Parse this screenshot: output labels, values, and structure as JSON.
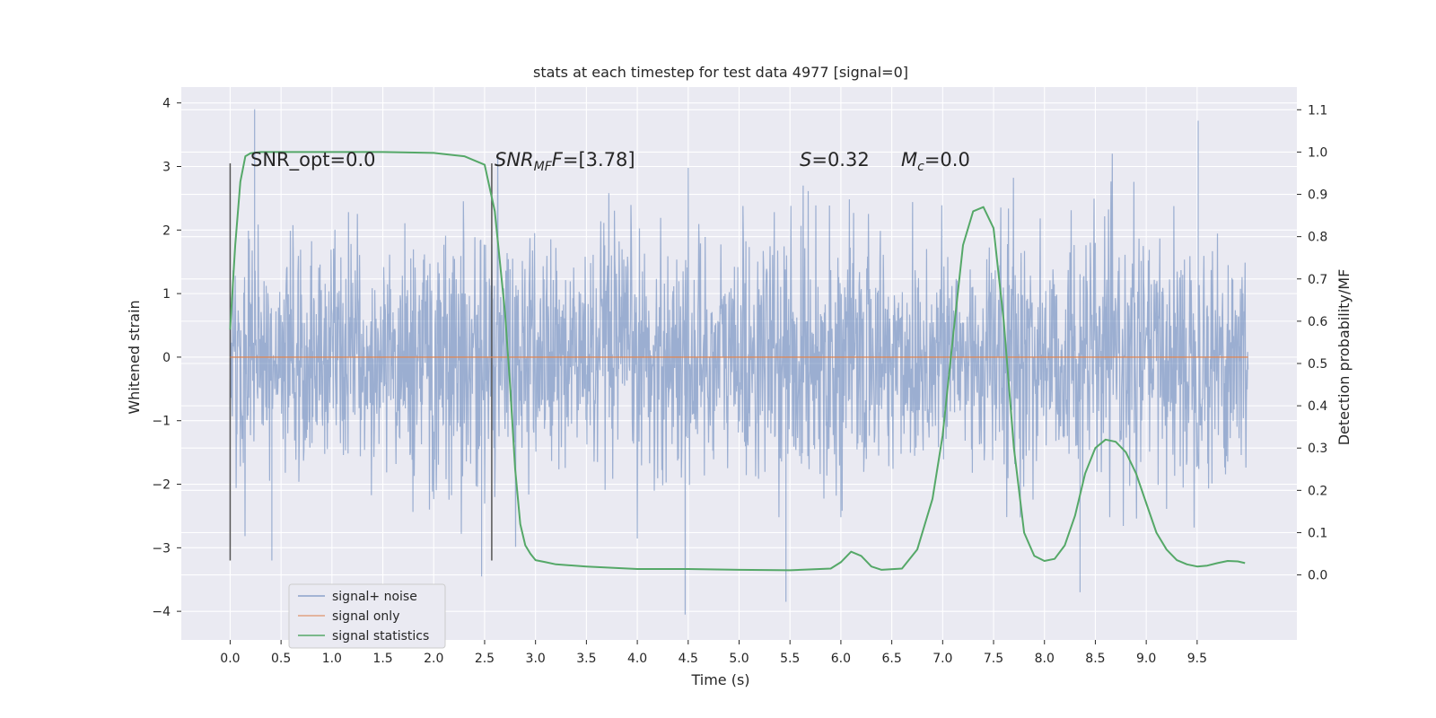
{
  "chart_data": {
    "type": "line",
    "title": "stats at each timestep for test data 4977 [signal=0]",
    "xlabel": "Time (s)",
    "ylabel": "Whitened strain",
    "y2label": "Detection probability/MF",
    "xlim": [
      -0.48,
      10.48
    ],
    "ylim": [
      -4.45,
      4.25
    ],
    "y2lim": [
      -0.1537,
      1.1537
    ],
    "x_ticks": [
      0.0,
      0.5,
      1.0,
      1.5,
      2.0,
      2.5,
      3.0,
      3.5,
      4.0,
      4.5,
      5.0,
      5.5,
      6.0,
      6.5,
      7.0,
      7.5,
      8.0,
      8.5,
      9.0,
      9.5
    ],
    "x_tick_labels": [
      "0.0",
      "0.5",
      "1.0",
      "1.5",
      "2.0",
      "2.5",
      "3.0",
      "3.5",
      "4.0",
      "4.5",
      "5.0",
      "5.5",
      "6.0",
      "6.5",
      "7.0",
      "7.5",
      "8.0",
      "8.5",
      "9.0",
      "9.5"
    ],
    "y_ticks": [
      4,
      3,
      2,
      1,
      0,
      -1,
      -2,
      -3,
      -4
    ],
    "y_tick_labels": [
      "4",
      "3",
      "2",
      "1",
      "0",
      "−1",
      "−2",
      "−3",
      "−4"
    ],
    "y2_ticks": [
      1.1,
      1.0,
      0.9,
      0.8,
      0.7,
      0.6,
      0.5,
      0.4,
      0.3,
      0.2,
      0.1,
      0.0
    ],
    "y2_tick_labels": [
      "1.1",
      "1.0",
      "0.9",
      "0.8",
      "0.7",
      "0.6",
      "0.5",
      "0.4",
      "0.3",
      "0.2",
      "0.1",
      "0.0"
    ],
    "grid": true,
    "legend_position": "lower-left",
    "series": [
      {
        "name": "signal+ noise",
        "color": "#4c72b0",
        "kind": "noise",
        "x_range": [
          0.0,
          10.0
        ],
        "typical_amplitude": 1.8,
        "extreme_values": [
          [
            0.24,
            3.9
          ],
          [
            4.47,
            -4.05
          ],
          [
            5.46,
            -3.85
          ],
          [
            9.51,
            3.72
          ],
          [
            2.47,
            -3.45
          ],
          [
            8.35,
            -3.7
          ],
          [
            0.41,
            -3.2
          ]
        ]
      },
      {
        "name": "signal only",
        "color": "#dd8452",
        "x": [
          0.0,
          10.0
        ],
        "y": [
          0.0,
          0.0
        ]
      },
      {
        "name": "signal statistics",
        "color": "#55a868",
        "axis": "right",
        "x": [
          0.0,
          0.05,
          0.1,
          0.15,
          0.2,
          0.3,
          0.5,
          1.0,
          1.5,
          2.0,
          2.3,
          2.5,
          2.6,
          2.7,
          2.75,
          2.8,
          2.85,
          2.9,
          2.95,
          3.0,
          3.1,
          3.2,
          3.5,
          4.0,
          4.5,
          5.0,
          5.5,
          5.9,
          6.0,
          6.1,
          6.2,
          6.3,
          6.4,
          6.6,
          6.75,
          6.9,
          7.0,
          7.1,
          7.2,
          7.3,
          7.4,
          7.5,
          7.6,
          7.7,
          7.8,
          7.9,
          8.0,
          8.1,
          8.2,
          8.3,
          8.4,
          8.5,
          8.6,
          8.7,
          8.8,
          8.9,
          9.0,
          9.1,
          9.2,
          9.3,
          9.4,
          9.5,
          9.6,
          9.7,
          9.8,
          9.9,
          9.97
        ],
        "y": [
          0.58,
          0.78,
          0.93,
          0.99,
          0.997,
          1.0,
          1.0,
          1.0,
          1.0,
          0.998,
          0.99,
          0.97,
          0.86,
          0.62,
          0.45,
          0.25,
          0.12,
          0.07,
          0.05,
          0.035,
          0.03,
          0.025,
          0.02,
          0.014,
          0.014,
          0.012,
          0.011,
          0.015,
          0.03,
          0.055,
          0.045,
          0.02,
          0.012,
          0.015,
          0.06,
          0.18,
          0.33,
          0.56,
          0.78,
          0.86,
          0.87,
          0.82,
          0.6,
          0.3,
          0.1,
          0.045,
          0.033,
          0.038,
          0.07,
          0.14,
          0.24,
          0.3,
          0.32,
          0.315,
          0.29,
          0.24,
          0.17,
          0.1,
          0.06,
          0.035,
          0.025,
          0.02,
          0.022,
          0.028,
          0.033,
          0.032,
          0.028
        ]
      }
    ],
    "vertical_markers": [
      {
        "x": 0.0,
        "y_range": [
          -3.2,
          3.05
        ]
      },
      {
        "x": 2.57,
        "y_range": [
          -3.2,
          3.05
        ]
      }
    ]
  },
  "annotations": {
    "snr_opt": "SNR_opt=0.0",
    "snr_mf_base": "SNR",
    "snr_mf_sub": "MF",
    "snr_mf_value": "=[3.78]",
    "s_label": "S",
    "s_value": "=0.32",
    "mc_base": "M",
    "mc_sub": "c",
    "mc_value": "=0.0"
  },
  "colors": {
    "plot_background": "#eaeaf2",
    "grid": "#ffffff",
    "marker_lines": "#555555"
  }
}
